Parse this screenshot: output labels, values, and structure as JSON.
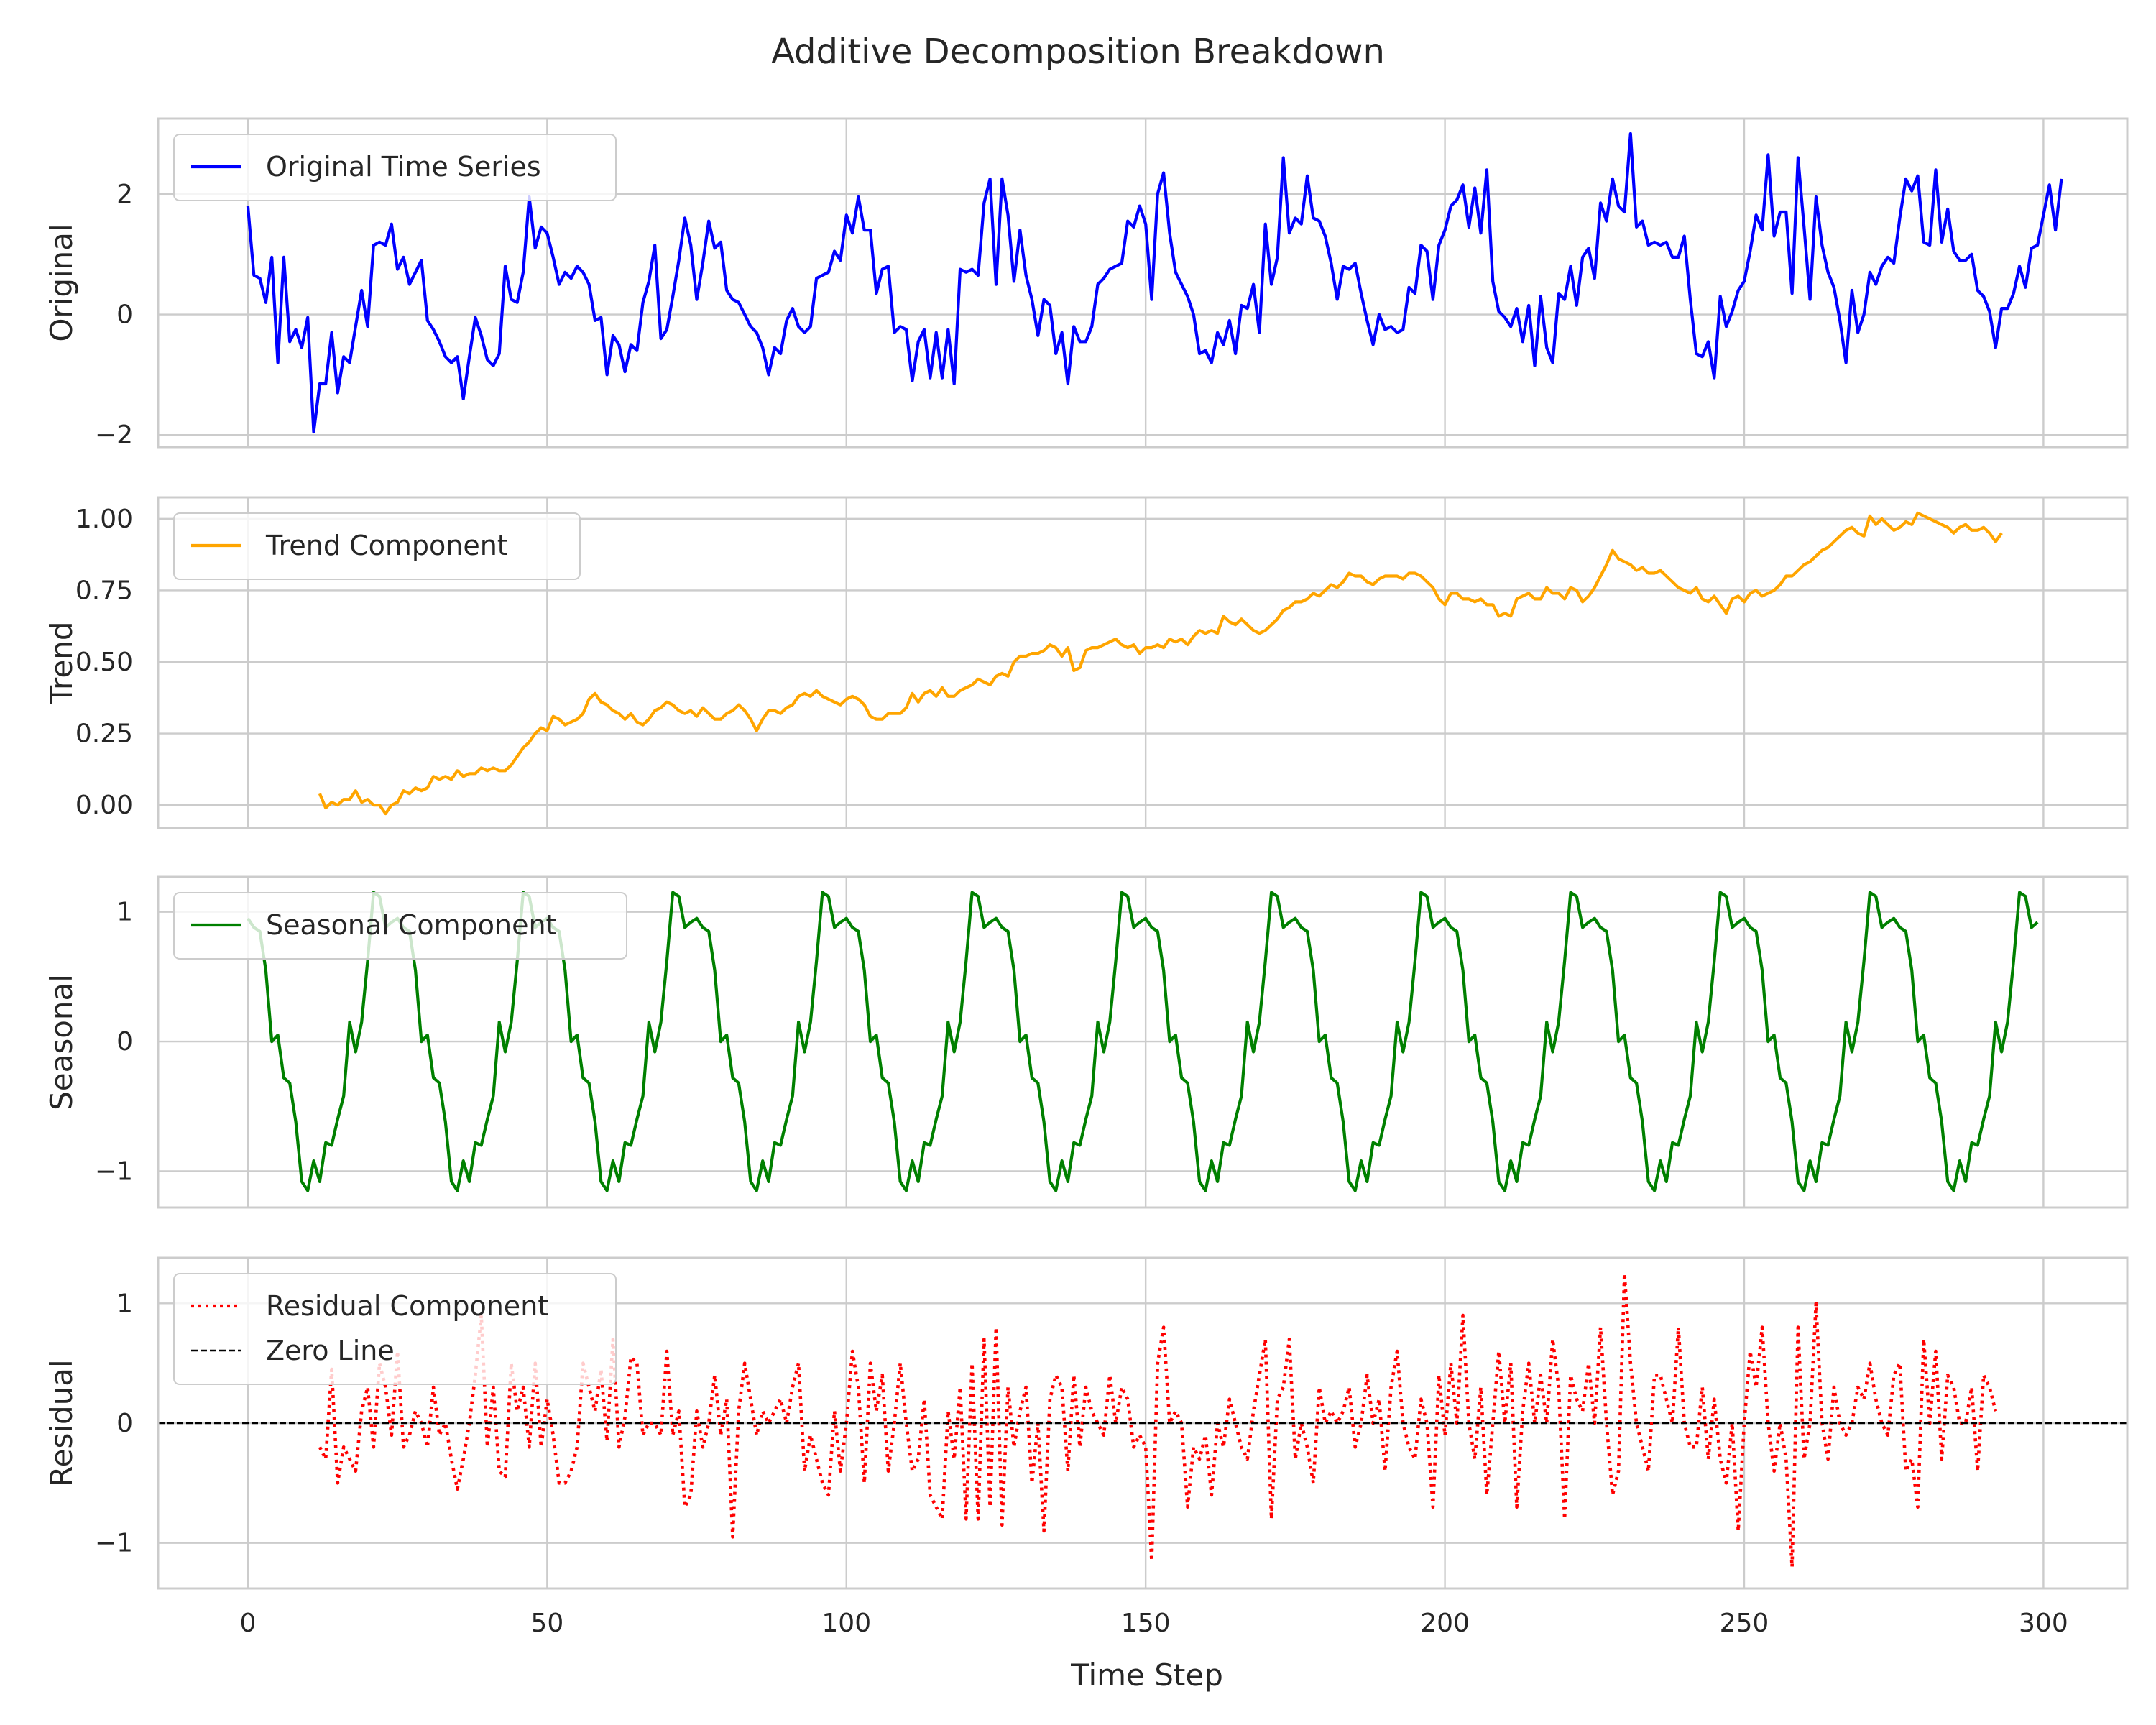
{
  "title": "Additive Decomposition Breakdown",
  "xlabel": "Time Step",
  "chart_data": [
    {
      "type": "line",
      "ylabel": "Original",
      "xlim": [
        -15,
        314
      ],
      "ylim": [
        -2.2,
        3.25
      ],
      "yticks": [
        -2,
        0,
        2
      ],
      "xticks": [
        0,
        50,
        100,
        150,
        200,
        250,
        300
      ],
      "grid": true,
      "legend_position": "top-left",
      "series": [
        {
          "name": "Original Time Series",
          "color": "#0000ff",
          "style": "solid",
          "x_start": 0,
          "values": [
            1.8,
            0.65,
            0.6,
            0.2,
            0.95,
            -0.8,
            0.95,
            -0.45,
            -0.25,
            -0.55,
            -0.05,
            -1.95,
            -1.15,
            -1.15,
            -0.3,
            -1.3,
            -0.7,
            -0.8,
            -0.2,
            0.4,
            -0.2,
            1.15,
            1.2,
            1.15,
            1.5,
            0.75,
            0.95,
            0.5,
            0.7,
            0.9,
            -0.1,
            -0.25,
            -0.45,
            -0.7,
            -0.8,
            -0.7,
            -1.4,
            -0.7,
            -0.05,
            -0.35,
            -0.75,
            -0.85,
            -0.65,
            0.8,
            0.25,
            0.2,
            0.7,
            1.95,
            1.1,
            1.45,
            1.35,
            0.95,
            0.5,
            0.7,
            0.6,
            0.8,
            0.7,
            0.5,
            -0.1,
            -0.05,
            -1.0,
            -0.35,
            -0.5,
            -0.95,
            -0.5,
            -0.6,
            0.2,
            0.55,
            1.15,
            -0.4,
            -0.25,
            0.3,
            0.9,
            1.6,
            1.15,
            0.25,
            0.85,
            1.55,
            1.1,
            1.2,
            0.4,
            0.25,
            0.2,
            0.0,
            -0.2,
            -0.3,
            -0.55,
            -1.0,
            -0.55,
            -0.65,
            -0.1,
            0.1,
            -0.2,
            -0.3,
            -0.2,
            0.6,
            0.65,
            0.7,
            1.05,
            0.9,
            1.65,
            1.35,
            1.95,
            1.4,
            1.4,
            0.35,
            0.75,
            0.8,
            -0.3,
            -0.2,
            -0.25,
            -1.1,
            -0.45,
            -0.25,
            -1.05,
            -0.3,
            -1.05,
            -0.25,
            -1.15,
            0.75,
            0.7,
            0.75,
            0.65,
            1.85,
            2.25,
            0.5,
            2.25,
            1.65,
            0.55,
            1.4,
            0.65,
            0.25,
            -0.35,
            0.25,
            0.15,
            -0.65,
            -0.3,
            -1.15,
            -0.2,
            -0.45,
            -0.45,
            -0.2,
            0.5,
            0.6,
            0.75,
            0.8,
            0.85,
            1.55,
            1.45,
            1.8,
            1.5,
            0.25,
            2.0,
            2.35,
            1.35,
            0.7,
            0.5,
            0.3,
            0.0,
            -0.65,
            -0.6,
            -0.8,
            -0.3,
            -0.5,
            -0.1,
            -0.65,
            0.15,
            0.1,
            0.5,
            -0.3,
            1.5,
            0.5,
            0.95,
            2.6,
            1.35,
            1.6,
            1.5,
            2.3,
            1.6,
            1.55,
            1.3,
            0.85,
            0.25,
            0.8,
            0.75,
            0.85,
            0.35,
            -0.1,
            -0.5,
            0.0,
            -0.25,
            -0.2,
            -0.3,
            -0.25,
            0.45,
            0.35,
            1.15,
            1.05,
            0.25,
            1.15,
            1.4,
            1.8,
            1.9,
            2.15,
            1.45,
            2.1,
            1.35,
            2.4,
            0.55,
            0.05,
            -0.05,
            -0.2,
            0.1,
            -0.45,
            0.15,
            -0.85,
            0.3,
            -0.55,
            -0.8,
            0.35,
            0.25,
            0.8,
            0.15,
            0.95,
            1.1,
            0.6,
            1.85,
            1.55,
            2.25,
            1.8,
            1.7,
            3.0,
            1.45,
            1.55,
            1.15,
            1.2,
            1.15,
            1.2,
            0.95,
            0.95,
            1.3,
            0.25,
            -0.65,
            -0.7,
            -0.45,
            -1.05,
            0.3,
            -0.2,
            0.05,
            0.4,
            0.55,
            1.05,
            1.65,
            1.4,
            2.65,
            1.3,
            1.7,
            1.7,
            0.35,
            2.6,
            1.45,
            0.25,
            1.95,
            1.15,
            0.7,
            0.45,
            -0.1,
            -0.8,
            0.4,
            -0.3,
            0.0,
            0.7,
            0.5,
            0.8,
            0.95,
            0.85,
            1.6,
            2.25,
            2.05,
            2.3,
            1.2,
            1.15,
            2.4,
            1.2,
            1.75,
            1.05,
            0.9,
            0.9,
            1.0,
            0.4,
            0.3,
            0.05,
            -0.55,
            0.1,
            0.1,
            0.35,
            0.8,
            0.45,
            1.1,
            1.15,
            1.65,
            2.15,
            1.4,
            2.25
          ]
        }
      ]
    },
    {
      "type": "line",
      "ylabel": "Trend",
      "xlim": [
        -15,
        314
      ],
      "ylim": [
        -0.08,
        1.075
      ],
      "yticks": [
        0.0,
        0.25,
        0.5,
        0.75,
        1.0
      ],
      "ytick_labels": [
        "0.00",
        "0.25",
        "0.50",
        "0.75",
        "1.00"
      ],
      "xticks": [
        0,
        50,
        100,
        150,
        200,
        250,
        300
      ],
      "grid": true,
      "legend_position": "top-left",
      "series": [
        {
          "name": "Trend Component",
          "color": "#ffa500",
          "style": "solid",
          "x_start": 12,
          "values": [
            0.04,
            -0.01,
            0.01,
            0.0,
            0.02,
            0.02,
            0.05,
            0.01,
            0.02,
            0.0,
            0.0,
            -0.03,
            0.0,
            0.01,
            0.05,
            0.04,
            0.06,
            0.05,
            0.06,
            0.1,
            0.09,
            0.1,
            0.09,
            0.12,
            0.1,
            0.11,
            0.11,
            0.13,
            0.12,
            0.13,
            0.12,
            0.12,
            0.14,
            0.17,
            0.2,
            0.22,
            0.25,
            0.27,
            0.26,
            0.31,
            0.3,
            0.28,
            0.29,
            0.3,
            0.32,
            0.37,
            0.39,
            0.36,
            0.35,
            0.33,
            0.32,
            0.3,
            0.32,
            0.29,
            0.28,
            0.3,
            0.33,
            0.34,
            0.36,
            0.35,
            0.33,
            0.32,
            0.33,
            0.31,
            0.34,
            0.32,
            0.3,
            0.3,
            0.32,
            0.33,
            0.35,
            0.33,
            0.3,
            0.26,
            0.3,
            0.33,
            0.33,
            0.32,
            0.34,
            0.35,
            0.38,
            0.39,
            0.38,
            0.4,
            0.38,
            0.37,
            0.36,
            0.35,
            0.37,
            0.38,
            0.37,
            0.35,
            0.31,
            0.3,
            0.3,
            0.32,
            0.32,
            0.32,
            0.34,
            0.39,
            0.36,
            0.39,
            0.4,
            0.38,
            0.41,
            0.38,
            0.38,
            0.4,
            0.41,
            0.42,
            0.44,
            0.43,
            0.42,
            0.45,
            0.46,
            0.45,
            0.5,
            0.52,
            0.52,
            0.53,
            0.53,
            0.54,
            0.56,
            0.55,
            0.52,
            0.55,
            0.47,
            0.48,
            0.54,
            0.55,
            0.55,
            0.56,
            0.57,
            0.58,
            0.56,
            0.55,
            0.56,
            0.53,
            0.55,
            0.55,
            0.56,
            0.55,
            0.58,
            0.57,
            0.58,
            0.56,
            0.59,
            0.61,
            0.6,
            0.61,
            0.6,
            0.66,
            0.64,
            0.63,
            0.65,
            0.63,
            0.61,
            0.6,
            0.61,
            0.63,
            0.65,
            0.68,
            0.69,
            0.71,
            0.71,
            0.72,
            0.74,
            0.73,
            0.75,
            0.77,
            0.76,
            0.78,
            0.81,
            0.8,
            0.8,
            0.78,
            0.77,
            0.79,
            0.8,
            0.8,
            0.8,
            0.79,
            0.81,
            0.81,
            0.8,
            0.78,
            0.76,
            0.72,
            0.7,
            0.74,
            0.74,
            0.72,
            0.72,
            0.71,
            0.72,
            0.7,
            0.7,
            0.66,
            0.67,
            0.66,
            0.72,
            0.73,
            0.74,
            0.72,
            0.72,
            0.76,
            0.74,
            0.74,
            0.72,
            0.76,
            0.75,
            0.71,
            0.73,
            0.76,
            0.8,
            0.84,
            0.89,
            0.86,
            0.85,
            0.84,
            0.82,
            0.83,
            0.81,
            0.81,
            0.82,
            0.8,
            0.78,
            0.76,
            0.75,
            0.74,
            0.76,
            0.72,
            0.71,
            0.73,
            0.7,
            0.67,
            0.72,
            0.73,
            0.71,
            0.74,
            0.75,
            0.73,
            0.74,
            0.75,
            0.77,
            0.8,
            0.8,
            0.82,
            0.84,
            0.85,
            0.87,
            0.89,
            0.9,
            0.92,
            0.94,
            0.96,
            0.97,
            0.95,
            0.94,
            1.01,
            0.98,
            1.0,
            0.98,
            0.96,
            0.97,
            0.99,
            0.98,
            1.02,
            1.01,
            1.0,
            0.99,
            0.98,
            0.97,
            0.95,
            0.97,
            0.98,
            0.96,
            0.96,
            0.97,
            0.95,
            0.92,
            0.95
          ]
        }
      ]
    },
    {
      "type": "line",
      "ylabel": "Seasonal",
      "xlim": [
        -15,
        314
      ],
      "ylim": [
        -1.28,
        1.27
      ],
      "yticks": [
        -1,
        0,
        1
      ],
      "xticks": [
        0,
        50,
        100,
        150,
        200,
        250,
        300
      ],
      "grid": true,
      "legend_position": "top-left",
      "series": [
        {
          "name": "Seasonal Component",
          "color": "#008000",
          "style": "solid",
          "x_start": 0,
          "period": 25,
          "pattern": [
            0.95,
            0.88,
            0.85,
            0.55,
            0.0,
            0.05,
            -0.28,
            -0.32,
            -0.62,
            -1.08,
            -1.15,
            -0.92,
            -1.08,
            -0.78,
            -0.8,
            -0.6,
            -0.42,
            0.15,
            -0.08,
            0.15,
            0.62,
            1.15,
            1.12,
            0.88,
            0.92
          ],
          "count": 300
        }
      ]
    },
    {
      "type": "line",
      "ylabel": "Residual",
      "xlim": [
        -15,
        314
      ],
      "ylim": [
        -1.38,
        1.38
      ],
      "yticks": [
        -1,
        0,
        1
      ],
      "xticks": [
        0,
        50,
        100,
        150,
        200,
        250,
        300
      ],
      "grid": true,
      "legend_position": "top-left",
      "series": [
        {
          "name": "Residual Component",
          "color": "#ff0000",
          "style": "dotted",
          "x_start": 12,
          "values": [
            -0.2,
            -0.3,
            0.45,
            -0.5,
            -0.2,
            -0.3,
            -0.4,
            0.1,
            0.3,
            -0.2,
            0.5,
            0.3,
            -0.1,
            0.6,
            -0.2,
            -0.1,
            0.1,
            0.0,
            -0.2,
            0.3,
            -0.1,
            0.0,
            -0.3,
            -0.55,
            -0.3,
            0.0,
            0.4,
            0.9,
            -0.2,
            0.3,
            -0.4,
            -0.45,
            0.5,
            0.1,
            0.3,
            -0.2,
            0.5,
            -0.2,
            0.2,
            -0.1,
            -0.5,
            -0.5,
            -0.4,
            -0.2,
            0.5,
            0.3,
            0.1,
            0.45,
            -0.15,
            0.7,
            -0.2,
            0.05,
            0.55,
            0.5,
            -0.1,
            0.0,
            0.0,
            -0.1,
            0.6,
            -0.1,
            0.1,
            -0.7,
            -0.6,
            0.1,
            -0.2,
            0.0,
            0.4,
            -0.1,
            0.2,
            -0.95,
            0.1,
            0.5,
            0.2,
            -0.1,
            0.1,
            0.0,
            0.1,
            0.2,
            0.0,
            0.3,
            0.5,
            -0.4,
            -0.1,
            -0.3,
            -0.5,
            -0.6,
            0.1,
            -0.4,
            0.0,
            0.6,
            0.3,
            -0.5,
            0.5,
            0.1,
            0.4,
            -0.4,
            0.0,
            0.5,
            0.0,
            -0.4,
            -0.3,
            0.2,
            -0.6,
            -0.7,
            -0.8,
            0.1,
            -0.3,
            0.3,
            -0.8,
            0.5,
            -0.8,
            0.7,
            -0.7,
            0.8,
            -0.85,
            0.3,
            -0.2,
            0.1,
            0.3,
            -0.5,
            0.0,
            -0.9,
            0.2,
            0.4,
            0.3,
            -0.4,
            0.4,
            -0.2,
            0.3,
            0.1,
            0.0,
            -0.1,
            0.4,
            0.0,
            0.3,
            0.2,
            -0.2,
            -0.1,
            -0.2,
            -1.15,
            0.5,
            0.8,
            0.0,
            0.1,
            0.0,
            -0.7,
            -0.2,
            -0.3,
            -0.1,
            -0.6,
            0.0,
            -0.2,
            0.2,
            0.0,
            -0.2,
            -0.3,
            0.1,
            0.4,
            0.7,
            -0.8,
            0.2,
            0.3,
            0.7,
            -0.3,
            0.0,
            -0.2,
            -0.5,
            0.3,
            0.0,
            0.1,
            0.0,
            0.1,
            0.3,
            -0.2,
            0.0,
            0.4,
            0.0,
            0.2,
            -0.4,
            0.3,
            0.6,
            0.0,
            -0.2,
            -0.3,
            0.2,
            0.0,
            -0.7,
            0.4,
            -0.1,
            0.5,
            0.0,
            0.9,
            0.0,
            -0.3,
            0.3,
            -0.6,
            0.0,
            0.6,
            0.0,
            0.5,
            -0.7,
            0.1,
            0.5,
            0.0,
            0.4,
            0.0,
            0.7,
            0.3,
            -0.8,
            0.4,
            0.2,
            0.1,
            0.5,
            0.0,
            0.8,
            0.0,
            -0.6,
            -0.4,
            1.25,
            0.5,
            0.0,
            -0.2,
            -0.4,
            0.4,
            0.4,
            0.2,
            0.0,
            0.8,
            0.0,
            -0.2,
            -0.2,
            0.3,
            -0.3,
            0.2,
            -0.3,
            -0.5,
            0.0,
            -0.9,
            0.0,
            0.6,
            0.3,
            0.8,
            0.0,
            -0.4,
            0.0,
            -0.3,
            -1.2,
            0.8,
            -0.3,
            0.0,
            1.0,
            0.0,
            -0.3,
            0.3,
            0.0,
            -0.1,
            0.0,
            0.3,
            0.2,
            0.5,
            0.2,
            0.0,
            -0.1,
            0.4,
            0.5,
            -0.4,
            -0.3,
            -0.7,
            0.7,
            0.0,
            0.6,
            -0.3,
            0.4,
            0.3,
            0.0,
            0.0,
            0.3,
            -0.4,
            0.4,
            0.3,
            0.1
          ]
        },
        {
          "name": "Zero Line",
          "color": "#000000",
          "style": "dashed",
          "hline": 0
        }
      ]
    }
  ]
}
